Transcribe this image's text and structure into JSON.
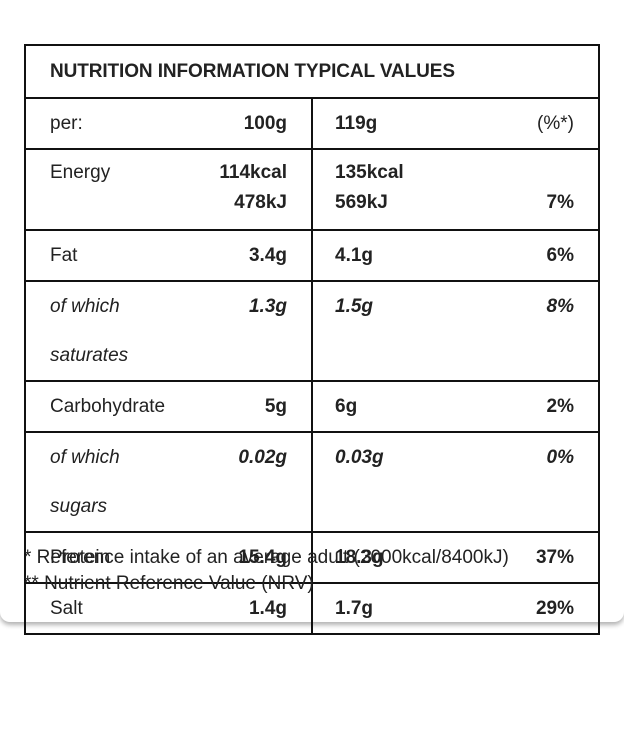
{
  "table": {
    "title": "NUTRITION INFORMATION TYPICAL VALUES",
    "header": {
      "label": "per:",
      "col_100g": "100g",
      "col_serving": "119g",
      "col_pct": "(%*)"
    },
    "energy": {
      "label": "Energy",
      "kcal_100g": "114kcal",
      "kj_100g": "478kJ",
      "kcal_serving": "135kcal",
      "kj_serving": "569kJ",
      "pct": "7%"
    },
    "rows": [
      {
        "label": "Fat",
        "per_100g": "3.4g",
        "per_serving": "4.1g",
        "pct": "6%",
        "italic": false
      },
      {
        "label": "of which saturates",
        "per_100g": "1.3g",
        "per_serving": "1.5g",
        "pct": "8%",
        "italic": true
      },
      {
        "label": "Carbohydrate",
        "per_100g": "5g",
        "per_serving": "6g",
        "pct": "2%",
        "italic": false
      },
      {
        "label": "of which sugars",
        "per_100g": "0.02g",
        "per_serving": "0.03g",
        "pct": "0%",
        "italic": true
      },
      {
        "label": "Protein",
        "per_100g": "15.4g",
        "per_serving": "18.3g",
        "pct": "37%",
        "italic": false
      },
      {
        "label": "Salt",
        "per_100g": "1.4g",
        "per_serving": "1.7g",
        "pct": "29%",
        "italic": false
      }
    ]
  },
  "footnotes": {
    "reference_intake": "* Reference intake of an average adult (2000kcal/8400kJ)",
    "nrv": "** Nutrient Reference Value (NRV)"
  }
}
